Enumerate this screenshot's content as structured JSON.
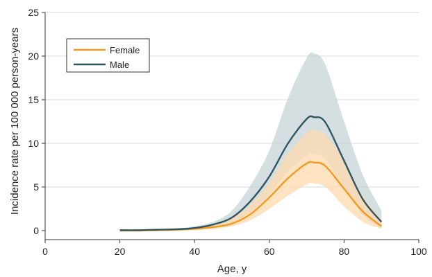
{
  "chart_data": {
    "type": "line",
    "title": "",
    "xlabel": "Age, y",
    "ylabel": "Incidence rate per 100 000 person-years",
    "xlim": [
      0,
      100
    ],
    "ylim": [
      0,
      25
    ],
    "xticks": [
      0,
      20,
      40,
      60,
      80,
      100
    ],
    "yticks": [
      0,
      5,
      10,
      15,
      20,
      25
    ],
    "grid": "horizontal",
    "legend_position": "top-left",
    "x": [
      20,
      25,
      30,
      35,
      40,
      45,
      50,
      55,
      60,
      65,
      70,
      72,
      75,
      80,
      85,
      90
    ],
    "series": [
      {
        "name": "Female",
        "color": "#f39a1e",
        "band_color": "#fcd9ad",
        "values": [
          0.0,
          0.0,
          0.05,
          0.1,
          0.2,
          0.4,
          0.8,
          1.9,
          3.8,
          6.0,
          7.7,
          7.8,
          7.4,
          4.8,
          2.2,
          0.5
        ],
        "lower": [
          -0.1,
          -0.1,
          -0.05,
          0.0,
          0.05,
          0.2,
          0.5,
          1.2,
          2.5,
          4.0,
          5.3,
          5.4,
          5.0,
          2.8,
          1.0,
          0.2
        ],
        "upper": [
          0.1,
          0.1,
          0.15,
          0.2,
          0.35,
          0.7,
          1.4,
          3.0,
          5.5,
          8.8,
          11.2,
          11.5,
          11.0,
          8.0,
          4.0,
          1.2
        ]
      },
      {
        "name": "Male",
        "color": "#2f5560",
        "band_color": "#c7d3d7",
        "values": [
          0.05,
          0.05,
          0.1,
          0.15,
          0.3,
          0.7,
          1.5,
          3.4,
          6.2,
          10.0,
          12.8,
          13.0,
          12.4,
          8.0,
          3.6,
          1.0
        ],
        "lower": [
          0.0,
          0.0,
          0.05,
          0.1,
          0.2,
          0.4,
          0.9,
          2.1,
          4.2,
          6.8,
          8.6,
          8.8,
          8.2,
          4.8,
          1.8,
          0.3
        ],
        "upper": [
          0.1,
          0.1,
          0.15,
          0.25,
          0.5,
          1.0,
          2.3,
          5.2,
          9.2,
          15.2,
          19.8,
          20.3,
          19.0,
          12.5,
          6.4,
          2.3
        ]
      }
    ]
  }
}
